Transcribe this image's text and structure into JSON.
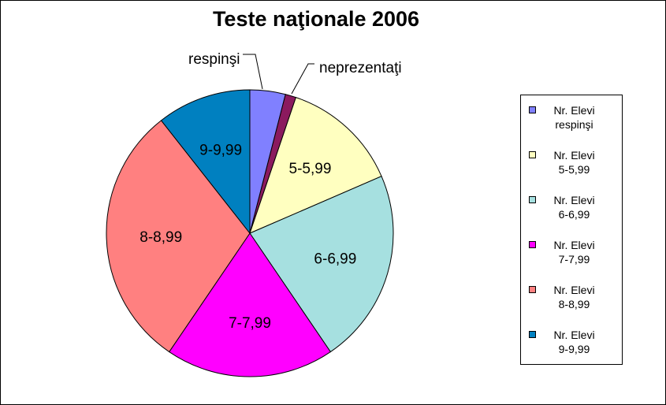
{
  "chart_data": {
    "type": "pie",
    "title": "Teste naţionale 2006",
    "slices": [
      {
        "series": "Nr. Elevi",
        "category": "respinşi",
        "label": "respinşi",
        "value": 4,
        "color": "#8080FF"
      },
      {
        "series": "Nr. Elevi",
        "category": "neprezentaţi",
        "label": "neprezentaţi",
        "value": 1.2,
        "color": "#8B1A5E"
      },
      {
        "series": "Nr. Elevi",
        "category": "5-5,99",
        "label": "5-5,99",
        "value": 13.3,
        "color": "#FFFFC0"
      },
      {
        "series": "Nr. Elevi",
        "category": "6-6,99",
        "label": "6-6,99",
        "value": 22,
        "color": "#A6E0E0"
      },
      {
        "series": "Nr. Elevi",
        "category": "7-7,99",
        "label": "7-7,99",
        "value": 19,
        "color": "#FF00FF"
      },
      {
        "series": "Nr. Elevi",
        "category": "8-8,99",
        "label": "8-8,99",
        "value": 29.9,
        "color": "#FF8080"
      },
      {
        "series": "Nr. Elevi",
        "category": "9-9,99",
        "label": "9-9,99",
        "value": 10.6,
        "color": "#0080C0"
      }
    ],
    "legend": {
      "placement": "right",
      "entries": [
        {
          "series": "Nr. Elevi",
          "category": "respinşi",
          "color": "#8080FF"
        },
        {
          "series": "Nr. Elevi",
          "category": "5-5,99",
          "color": "#FFFFC0"
        },
        {
          "series": "Nr. Elevi",
          "category": "6-6,99",
          "color": "#A6E0E0"
        },
        {
          "series": "Nr. Elevi",
          "category": "7-7,99",
          "color": "#FF00FF"
        },
        {
          "series": "Nr. Elevi",
          "category": "8-8,99",
          "color": "#FF8080"
        },
        {
          "series": "Nr. Elevi",
          "category": "9-9,99",
          "color": "#0080C0"
        }
      ]
    }
  }
}
